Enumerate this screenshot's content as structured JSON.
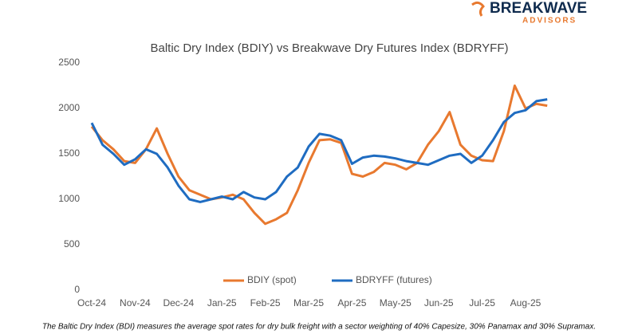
{
  "logo": {
    "name": "BREAKWAVE",
    "sub": "ADVISORS"
  },
  "footnote": "The Baltic Dry Index (BDI) measures the average spot rates for dry bulk freight with a sector weighting of 40% Capesize, 30% Panamax and 30% Supramax.",
  "chart_data": {
    "type": "line",
    "title": "Baltic Dry Index (BDIY) vs Breakwave Dry Futures Index (BDRYFF)",
    "categories": [
      "Oct-24",
      null,
      null,
      null,
      "Nov-24",
      null,
      null,
      null,
      "Dec-24",
      null,
      null,
      null,
      "Jan-25",
      null,
      null,
      null,
      "Feb-25",
      null,
      null,
      null,
      "Mar-25",
      null,
      null,
      null,
      "Apr-25",
      null,
      null,
      null,
      "May-25",
      null,
      null,
      null,
      "Jun-25",
      null,
      null,
      null,
      "Jul-25",
      null,
      null,
      null,
      "Aug-25",
      null,
      null
    ],
    "series": [
      {
        "name": "BDIY (spot)",
        "color": "#e8792f",
        "values": [
          1800,
          1650,
          1550,
          1420,
          1400,
          1550,
          1780,
          1500,
          1250,
          1100,
          1050,
          1000,
          1020,
          1050,
          1000,
          850,
          730,
          780,
          850,
          1100,
          1400,
          1650,
          1660,
          1620,
          1280,
          1250,
          1300,
          1400,
          1380,
          1330,
          1400,
          1600,
          1750,
          1960,
          1600,
          1480,
          1430,
          1420,
          1750,
          2250,
          2000,
          2050,
          2030
        ]
      },
      {
        "name": "BDRYFF (futures)",
        "color": "#1f6cc1",
        "values": [
          1840,
          1600,
          1500,
          1380,
          1440,
          1550,
          1500,
          1350,
          1150,
          1000,
          970,
          1000,
          1030,
          1000,
          1080,
          1020,
          1000,
          1080,
          1250,
          1350,
          1580,
          1720,
          1700,
          1650,
          1390,
          1460,
          1480,
          1470,
          1450,
          1420,
          1400,
          1380,
          1430,
          1480,
          1500,
          1400,
          1480,
          1650,
          1850,
          1950,
          1980,
          2080,
          2100
        ]
      }
    ],
    "ylim": [
      0,
      2500
    ],
    "yticks": [
      0,
      500,
      1000,
      1500,
      2000,
      2500
    ],
    "grid": false,
    "legend": "bottom"
  }
}
